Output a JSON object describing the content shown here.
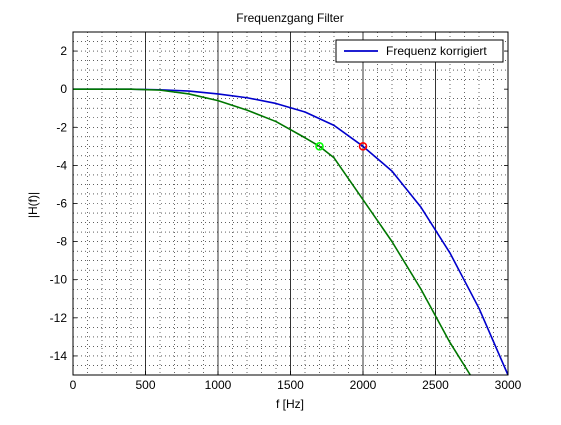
{
  "chart_data": {
    "type": "line",
    "title": "Frequenzgang Filter",
    "xlabel": "f [Hz]",
    "ylabel": "|H(f)|",
    "xlim": [
      0,
      3000
    ],
    "ylim": [
      -15,
      3
    ],
    "xticks": [
      0,
      500,
      1000,
      1500,
      2000,
      2500,
      3000
    ],
    "yticks": [
      2,
      0,
      -2,
      -4,
      -6,
      -8,
      -10,
      -12,
      -14
    ],
    "grid": "major solid vertical, minor dotted",
    "legend_placement": "top-right",
    "series": [
      {
        "name": "Frequenz korrigiert",
        "color": "#0000cc",
        "points": [
          [
            0,
            0
          ],
          [
            200,
            0
          ],
          [
            400,
            0
          ],
          [
            600,
            -0.03
          ],
          [
            800,
            -0.1
          ],
          [
            1000,
            -0.25
          ],
          [
            1200,
            -0.45
          ],
          [
            1400,
            -0.75
          ],
          [
            1600,
            -1.2
          ],
          [
            1800,
            -1.9
          ],
          [
            2000,
            -3.0
          ],
          [
            2200,
            -4.3
          ],
          [
            2400,
            -6.2
          ],
          [
            2600,
            -8.6
          ],
          [
            2800,
            -11.5
          ],
          [
            3000,
            -15.0
          ]
        ]
      },
      {
        "color": "#007700",
        "points": [
          [
            0,
            0
          ],
          [
            200,
            0
          ],
          [
            400,
            0
          ],
          [
            600,
            -0.05
          ],
          [
            800,
            -0.25
          ],
          [
            1000,
            -0.6
          ],
          [
            1200,
            -1.1
          ],
          [
            1400,
            -1.7
          ],
          [
            1600,
            -2.55
          ],
          [
            1700,
            -3.0
          ],
          [
            1800,
            -3.6
          ],
          [
            2000,
            -5.8
          ],
          [
            2200,
            -8.0
          ],
          [
            2400,
            -10.5
          ],
          [
            2600,
            -13.3
          ],
          [
            2740,
            -15.0
          ]
        ]
      }
    ],
    "markers": [
      {
        "x": 2000,
        "y": -3,
        "color": "#ff0000",
        "shape": "circle"
      },
      {
        "x": 1700,
        "y": -3,
        "color": "#00ff00",
        "shape": "circle"
      }
    ]
  }
}
